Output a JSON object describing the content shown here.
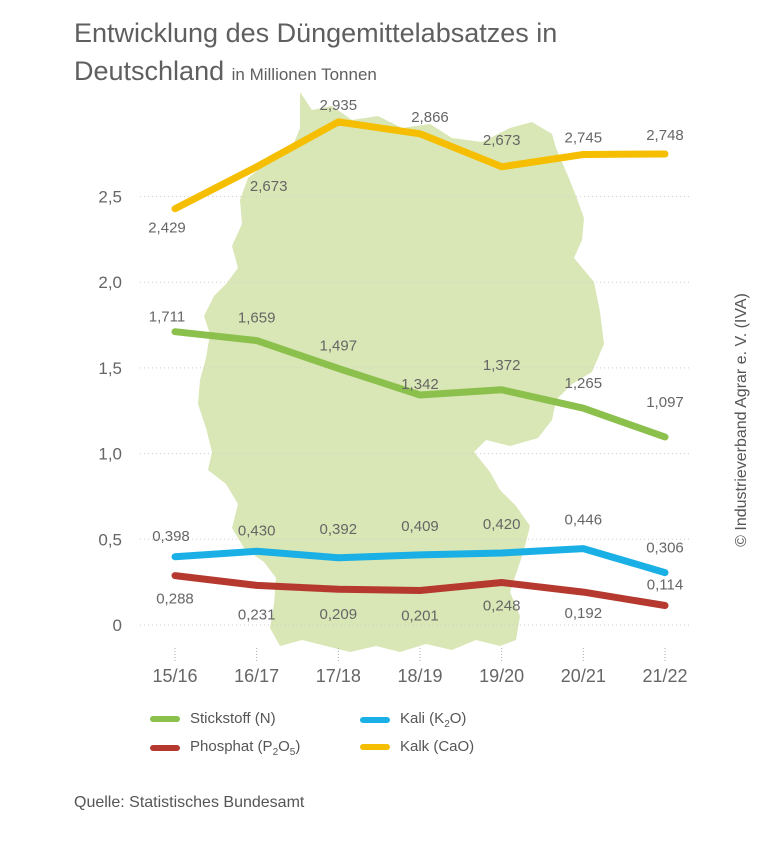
{
  "title": {
    "main": "Entwicklung des Düngemittelabsatzes in Deutschland",
    "unit": "in Millionen Tonnen"
  },
  "source": "Quelle: Statistisches Bundesamt",
  "copyright": "© Industrieverband Agrar e. V. (IVA)",
  "chart_data": {
    "type": "line",
    "categories": [
      "15/16",
      "16/17",
      "17/18",
      "18/19",
      "19/20",
      "20/21",
      "21/22"
    ],
    "ylim": [
      0,
      3.0
    ],
    "yticks": [
      0,
      0.5,
      1.0,
      1.5,
      2.0,
      2.5
    ],
    "ytick_labels": [
      "0",
      "0,5",
      "1,0",
      "1,5",
      "2,0",
      "2,5"
    ],
    "grid": true,
    "legend_position": "bottom",
    "background_image": "germany-map",
    "series": [
      {
        "name": "Kalk (CaO)",
        "color": "#f5be00",
        "values": [
          2.429,
          2.673,
          2.935,
          2.866,
          2.673,
          2.745,
          2.748
        ],
        "labels": [
          "2,429",
          "2,673",
          "2,935",
          "2,866",
          "2,673",
          "2,745",
          "2,748"
        ]
      },
      {
        "name": "Stickstoff (N)",
        "color": "#8cc04d",
        "values": [
          1.711,
          1.659,
          1.497,
          1.342,
          1.372,
          1.265,
          1.097
        ],
        "labels": [
          "1,711",
          "1,659",
          "1,497",
          "1,342",
          "1,372",
          "1,265",
          "1,097"
        ]
      },
      {
        "name": "Kali (K2O)",
        "color": "#1ab0e6",
        "values": [
          0.398,
          0.43,
          0.392,
          0.409,
          0.42,
          0.446,
          0.306
        ],
        "labels": [
          "0,398",
          "0,430",
          "0,392",
          "0,409",
          "0,420",
          "0,446",
          "0,306"
        ]
      },
      {
        "name": "Phosphat (P2O5)",
        "color": "#b5392e",
        "values": [
          0.288,
          0.231,
          0.209,
          0.201,
          0.248,
          0.192,
          0.114
        ],
        "labels": [
          "0,288",
          "0,231",
          "0,209",
          "0,201",
          "0,248",
          "0,192",
          "0,114"
        ]
      }
    ]
  }
}
